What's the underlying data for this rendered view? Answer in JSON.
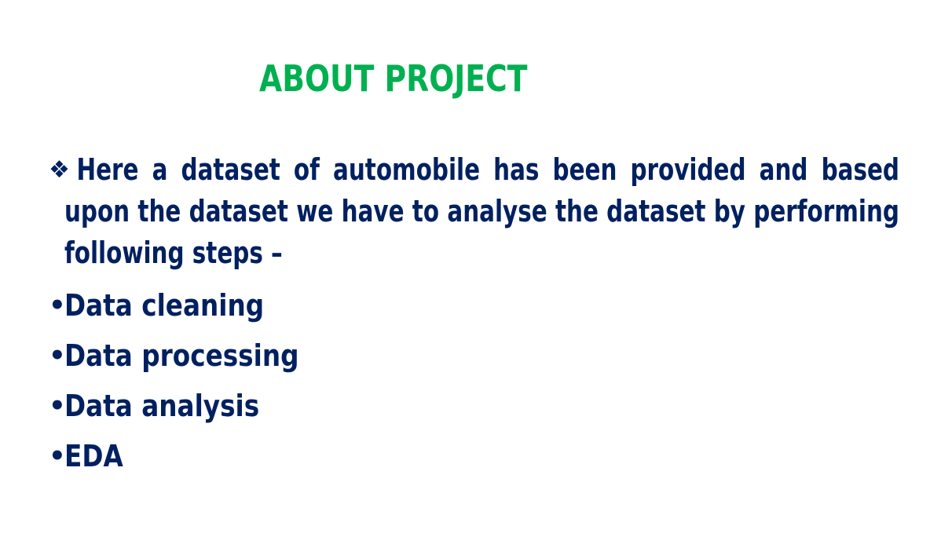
{
  "slide": {
    "title": "ABOUT PROJECT",
    "intro": {
      "icon": "diamond-bullet-icon",
      "text": "Here a dataset of automobile has been provided and based upon the dataset we have to analyse the dataset by performing following steps –"
    },
    "steps": [
      {
        "label": "Data cleaning"
      },
      {
        "label": "Data processing"
      },
      {
        "label": "Data analysis"
      },
      {
        "label": "EDA"
      }
    ]
  },
  "colors": {
    "title": "#00b050",
    "body": "#002060",
    "background": "#ffffff"
  }
}
